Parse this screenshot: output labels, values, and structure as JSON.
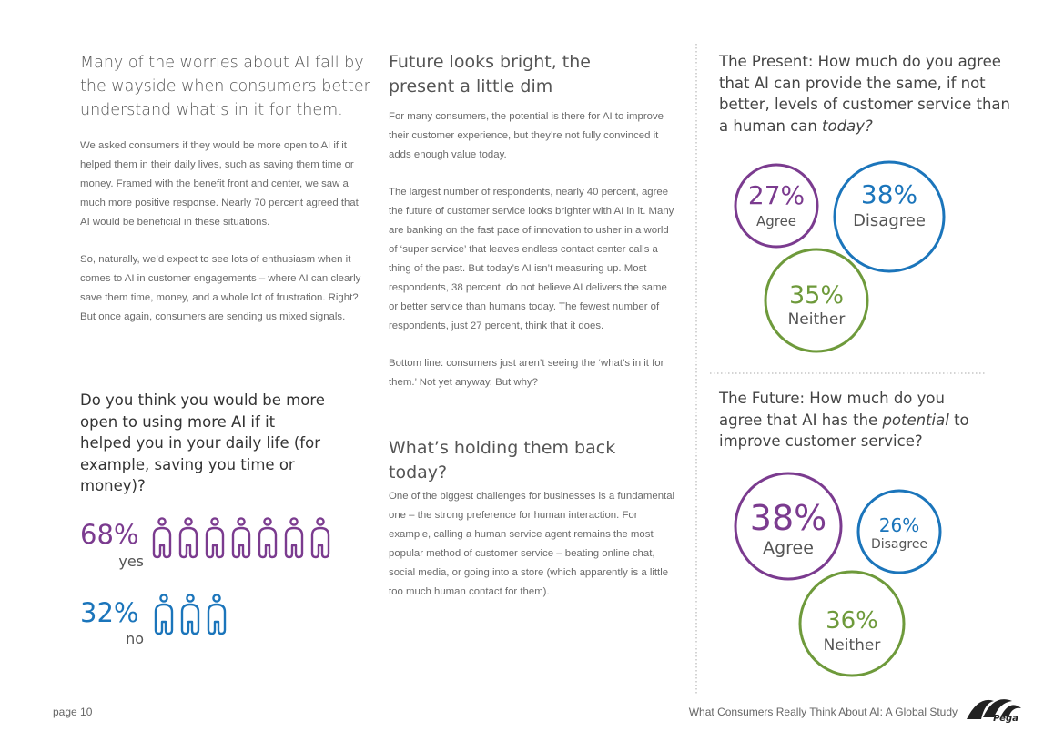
{
  "column1": {
    "lead": "Many of the worries about AI fall by the wayside when consumers better understand what’s in it for them.",
    "paragraphs": [
      "We asked consumers if they would be more open to AI if it helped them in their daily lives, such as saving them time or money. Framed with the benefit front and center, we saw a much more positive response. Nearly 70 percent agreed that AI would be beneficial in these situations.",
      "So, naturally, we’d expect to see lots of enthusiasm when it comes to AI in customer engagements – where AI can clearly save them time, money, and a whole lot of frustration. Right? But once again, consumers are sending us mixed signals."
    ],
    "question": "Do you think you would be more open to using more AI if it helped you in your daily life (for example, saving you time or money)?",
    "results": [
      {
        "percent": "68%",
        "answer": "yes"
      },
      {
        "percent": "32%",
        "answer": "no"
      }
    ]
  },
  "column2": {
    "heading": "Future looks bright, the present a little dim",
    "paragraphs": [
      "For many consumers, the potential is there for AI to improve their customer experience, but they’re not fully convinced it adds enough value today.",
      "The largest number of respondents, nearly 40 percent, agree the future of customer service looks brighter with AI in it. Many are banking on the fast pace of innovation to usher in a world of ‘super service’ that leaves endless contact center calls a thing of the past. But today’s AI isn’t measuring up. Most respondents, 38 percent, do not believe AI delivers the same or better service than humans today. The fewest number of respondents, just 27 percent, think that it does.",
      "Bottom line: consumers just aren’t seeing the ‘what’s in it for them.’ Not yet anyway. But why?"
    ],
    "heading2": "What’s holding them back today?",
    "paragraphs2": [
      "One of the biggest challenges for businesses is a fundamental one – the strong preference for human interaction. For example, calling a human service agent remains the most popular method of customer service – beating online chat, social media, or going into a store (which apparently is a little too much human contact for them)."
    ]
  },
  "column3": {
    "present": {
      "question": [
        "The Present: How much do you agree that AI can provide the same, if not better, levels of customer service than a human can ",
        "today?"
      ],
      "results": [
        {
          "percent": "27%",
          "answer": "Agree"
        },
        {
          "percent": "38%",
          "answer": "Disagree"
        },
        {
          "percent": "35%",
          "answer": "Neither"
        }
      ]
    },
    "future": {
      "question": [
        "The Future: How much do you agree that AI has the ",
        "potential",
        " to improve customer service?"
      ],
      "results": [
        {
          "percent": "38%",
          "answer": "Agree"
        },
        {
          "percent": "26%",
          "answer": "Disagree"
        },
        {
          "percent": "36%",
          "answer": "Neither"
        }
      ]
    }
  },
  "footer": {
    "page": "page 10",
    "title": "What Consumers Really Think About AI: A Global Study",
    "logo": "Pega"
  }
}
